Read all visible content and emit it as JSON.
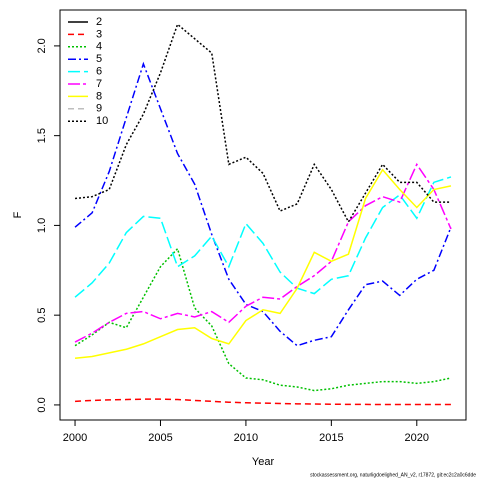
{
  "chart_data": {
    "type": "line",
    "xlabel": "Year",
    "ylabel": "F",
    "footer": "stockassessment.org, naturligdoelighed_AN_v2, r17872, git:ec2c2a0c6dde",
    "x": [
      2000,
      2001,
      2002,
      2003,
      2004,
      2005,
      2006,
      2007,
      2008,
      2009,
      2010,
      2011,
      2012,
      2013,
      2014,
      2015,
      2016,
      2017,
      2018,
      2019,
      2020,
      2021,
      2022
    ],
    "xlim": [
      1999.12,
      2022.88
    ],
    "xticks": [
      2000,
      2005,
      2010,
      2015,
      2020
    ],
    "ylim": [
      -0.084,
      2.2
    ],
    "yticks": [
      {
        "value": 0,
        "label": "0.0"
      },
      0.5,
      {
        "value": 1,
        "label": "1.0"
      },
      1.5,
      {
        "value": 2,
        "label": "2.0"
      }
    ],
    "legend": "top-left",
    "series": [
      {
        "name": "2",
        "color": "#000000",
        "dash": "",
        "values": [
          null,
          null,
          null,
          null,
          null,
          null,
          null,
          null,
          null,
          null,
          null,
          null,
          null,
          null,
          null,
          null,
          null,
          null,
          null,
          null,
          null,
          null,
          null
        ]
      },
      {
        "name": "3",
        "color": "#ff0000",
        "dash": "6,4",
        "values": [
          0.02,
          0.025,
          0.028,
          0.03,
          0.032,
          0.032,
          0.03,
          0.025,
          0.02,
          0.015,
          0.012,
          0.01,
          0.008,
          0.006,
          0.005,
          0.004,
          0.003,
          0.003,
          0.002,
          0.002,
          0.002,
          0.002,
          0.002
        ]
      },
      {
        "name": "4",
        "color": "#00c000",
        "dash": "2,2",
        "values": [
          0.33,
          0.39,
          0.46,
          0.43,
          0.6,
          0.77,
          0.87,
          0.54,
          0.44,
          0.23,
          0.15,
          0.14,
          0.11,
          0.1,
          0.08,
          0.09,
          0.11,
          0.12,
          0.13,
          0.13,
          0.12,
          0.13,
          0.15
        ]
      },
      {
        "name": "5",
        "color": "#0000ff",
        "dash": "8,3,2,3",
        "values": [
          0.99,
          1.07,
          1.3,
          1.6,
          1.9,
          1.65,
          1.4,
          1.23,
          0.95,
          0.7,
          0.56,
          0.52,
          0.41,
          0.33,
          0.36,
          0.38,
          0.53,
          0.67,
          0.69,
          0.61,
          0.7,
          0.75,
          0.99
        ]
      },
      {
        "name": "6",
        "color": "#00ffff",
        "dash": "12,4",
        "values": [
          0.6,
          0.68,
          0.79,
          0.96,
          1.05,
          1.04,
          0.77,
          0.83,
          0.94,
          0.77,
          1.01,
          0.9,
          0.74,
          0.65,
          0.62,
          0.7,
          0.72,
          0.93,
          1.1,
          1.17,
          1.04,
          1.24,
          1.27
        ]
      },
      {
        "name": "7",
        "color": "#ff00ff",
        "dash": "12,3,3,3",
        "values": [
          0.35,
          0.4,
          0.46,
          0.51,
          0.52,
          0.48,
          0.51,
          0.49,
          0.52,
          0.46,
          0.55,
          0.6,
          0.59,
          0.66,
          0.72,
          0.8,
          1.02,
          1.11,
          1.16,
          1.13,
          1.34,
          1.2,
          0.98
        ]
      },
      {
        "name": "8",
        "color": "#ffff00",
        "dash": "",
        "values": [
          0.26,
          0.27,
          0.29,
          0.31,
          0.34,
          0.38,
          0.42,
          0.43,
          0.37,
          0.34,
          0.47,
          0.53,
          0.51,
          0.65,
          0.85,
          0.8,
          0.84,
          1.15,
          1.31,
          1.2,
          1.1,
          1.2,
          1.22
        ]
      },
      {
        "name": "9",
        "color": "#bebebe",
        "dash": "6,4",
        "values": [
          null,
          null,
          null,
          null,
          null,
          null,
          null,
          null,
          null,
          null,
          null,
          null,
          null,
          null,
          null,
          null,
          null,
          null,
          null,
          null,
          null,
          null,
          null
        ]
      },
      {
        "name": "10",
        "color": "#000000",
        "dash": "2,2",
        "values": [
          1.15,
          1.16,
          1.2,
          1.45,
          1.62,
          1.85,
          2.12,
          2.04,
          1.96,
          1.34,
          1.38,
          1.29,
          1.08,
          1.12,
          1.34,
          1.2,
          1.02,
          1.18,
          1.34,
          1.24,
          1.24,
          1.13,
          1.13
        ]
      }
    ]
  }
}
